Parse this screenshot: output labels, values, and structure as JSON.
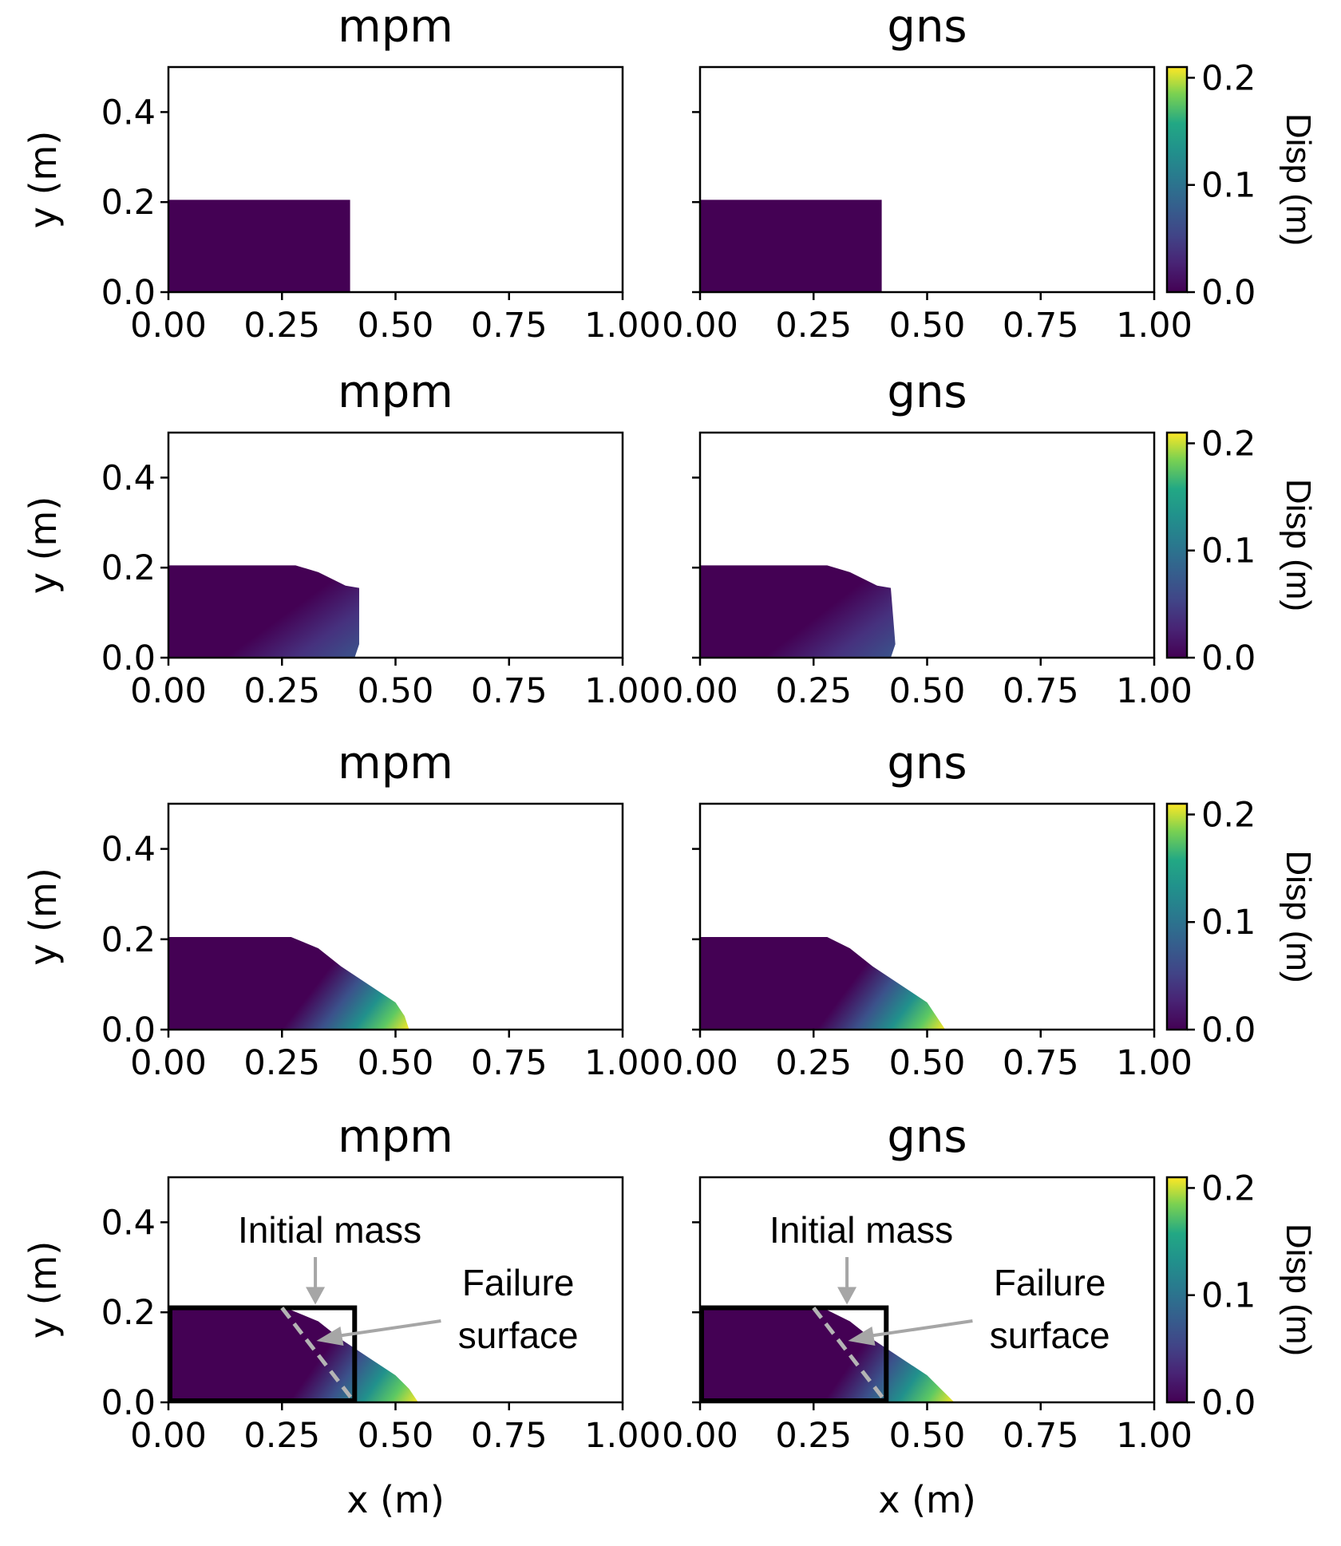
{
  "figure": {
    "colormap": "viridis",
    "axis_color": "#000000",
    "annotation_color": "#a6a6a6",
    "box_color": "#000000"
  },
  "chart_data": [
    {
      "panel": "r1-mpm",
      "type": "scatter",
      "title": "mpm",
      "xlabel": "",
      "ylabel": "y (m)",
      "xlim": [
        0,
        1
      ],
      "ylim": [
        0,
        0.5
      ],
      "xticks": [
        "0.00",
        "0.25",
        "0.50",
        "0.75",
        "1.00"
      ],
      "yticks": [
        "0.0",
        "0.2",
        "0.4"
      ],
      "profile": [
        [
          0,
          0.205
        ],
        [
          0.4,
          0.205
        ],
        [
          0.4,
          0
        ]
      ],
      "disp_front": null,
      "max_disp": 0.0
    },
    {
      "panel": "r1-gns",
      "type": "scatter",
      "title": "gns",
      "xlabel": "",
      "ylabel": "",
      "xlim": [
        0,
        1
      ],
      "ylim": [
        0,
        0.5
      ],
      "xticks": [
        "0.00",
        "0.25",
        "0.50",
        "0.75",
        "1.00"
      ],
      "yticks": [],
      "profile": [
        [
          0,
          0.205
        ],
        [
          0.4,
          0.205
        ],
        [
          0.4,
          0
        ]
      ],
      "disp_front": null,
      "max_disp": 0.0
    },
    {
      "panel": "r2-mpm",
      "type": "scatter",
      "title": "mpm",
      "xlabel": "",
      "ylabel": "y (m)",
      "xlim": [
        0,
        1
      ],
      "ylim": [
        0,
        0.5
      ],
      "xticks": [
        "0.00",
        "0.25",
        "0.50",
        "0.75",
        "1.00"
      ],
      "yticks": [
        "0.0",
        "0.2",
        "0.4"
      ],
      "profile": [
        [
          0,
          0.205
        ],
        [
          0.28,
          0.205
        ],
        [
          0.33,
          0.19
        ],
        [
          0.39,
          0.16
        ],
        [
          0.42,
          0.155
        ],
        [
          0.42,
          0.03
        ],
        [
          0.41,
          0
        ]
      ],
      "disp_front": [
        0.26,
        0.4
      ],
      "max_disp": 0.05
    },
    {
      "panel": "r2-gns",
      "type": "scatter",
      "title": "gns",
      "xlabel": "",
      "ylabel": "",
      "xlim": [
        0,
        1
      ],
      "ylim": [
        0,
        0.5
      ],
      "xticks": [
        "0.00",
        "0.25",
        "0.50",
        "0.75",
        "1.00"
      ],
      "yticks": [],
      "profile": [
        [
          0,
          0.205
        ],
        [
          0.28,
          0.205
        ],
        [
          0.33,
          0.19
        ],
        [
          0.39,
          0.16
        ],
        [
          0.42,
          0.155
        ],
        [
          0.43,
          0.03
        ],
        [
          0.42,
          0
        ]
      ],
      "disp_front": [
        0.26,
        0.4
      ],
      "max_disp": 0.05
    },
    {
      "panel": "r3-mpm",
      "type": "scatter",
      "title": "mpm",
      "xlabel": "",
      "ylabel": "y (m)",
      "xlim": [
        0,
        1
      ],
      "ylim": [
        0,
        0.5
      ],
      "xticks": [
        "0.00",
        "0.25",
        "0.50",
        "0.75",
        "1.00"
      ],
      "yticks": [
        "0.0",
        "0.2",
        "0.4"
      ],
      "profile": [
        [
          0,
          0.205
        ],
        [
          0.27,
          0.205
        ],
        [
          0.33,
          0.18
        ],
        [
          0.38,
          0.14
        ],
        [
          0.44,
          0.1
        ],
        [
          0.5,
          0.06
        ],
        [
          0.52,
          0.03
        ],
        [
          0.53,
          0
        ]
      ],
      "disp_front": [
        0.26,
        0.4
      ],
      "max_disp": 0.2
    },
    {
      "panel": "r3-gns",
      "type": "scatter",
      "title": "gns",
      "xlabel": "",
      "ylabel": "",
      "xlim": [
        0,
        1
      ],
      "ylim": [
        0,
        0.5
      ],
      "xticks": [
        "0.00",
        "0.25",
        "0.50",
        "0.75",
        "1.00"
      ],
      "yticks": [],
      "profile": [
        [
          0,
          0.205
        ],
        [
          0.28,
          0.205
        ],
        [
          0.33,
          0.18
        ],
        [
          0.38,
          0.14
        ],
        [
          0.44,
          0.1
        ],
        [
          0.5,
          0.06
        ],
        [
          0.52,
          0.03
        ],
        [
          0.54,
          0
        ]
      ],
      "disp_front": [
        0.26,
        0.4
      ],
      "max_disp": 0.2
    },
    {
      "panel": "r4-mpm",
      "type": "scatter",
      "title": "mpm",
      "xlabel": "x (m)",
      "ylabel": "y (m)",
      "xlim": [
        0,
        1
      ],
      "ylim": [
        0,
        0.5
      ],
      "xticks": [
        "0.00",
        "0.25",
        "0.50",
        "0.75",
        "1.00"
      ],
      "yticks": [
        "0.0",
        "0.2",
        "0.4"
      ],
      "profile": [
        [
          0,
          0.205
        ],
        [
          0.27,
          0.205
        ],
        [
          0.33,
          0.18
        ],
        [
          0.38,
          0.14
        ],
        [
          0.44,
          0.1
        ],
        [
          0.5,
          0.06
        ],
        [
          0.53,
          0.03
        ],
        [
          0.55,
          0
        ]
      ],
      "disp_front": [
        0.26,
        0.4
      ],
      "max_disp": 0.21,
      "initial_mass": {
        "x0": 0,
        "x1": 0.41,
        "y0": 0,
        "y1": 0.21
      },
      "failure_surface": {
        "x_top": 0.25,
        "y_top": 0.21,
        "x_bottom": 0.41,
        "y_bottom": 0
      },
      "annotations": {
        "initial_mass": "Initial mass",
        "failure_line1": "Failure",
        "failure_line2": "surface"
      }
    },
    {
      "panel": "r4-gns",
      "type": "scatter",
      "title": "gns",
      "xlabel": "x (m)",
      "ylabel": "",
      "xlim": [
        0,
        1
      ],
      "ylim": [
        0,
        0.5
      ],
      "xticks": [
        "0.00",
        "0.25",
        "0.50",
        "0.75",
        "1.00"
      ],
      "yticks": [],
      "profile": [
        [
          0,
          0.205
        ],
        [
          0.28,
          0.205
        ],
        [
          0.33,
          0.18
        ],
        [
          0.38,
          0.14
        ],
        [
          0.44,
          0.1
        ],
        [
          0.5,
          0.06
        ],
        [
          0.53,
          0.03
        ],
        [
          0.56,
          0
        ]
      ],
      "disp_front": [
        0.26,
        0.4
      ],
      "max_disp": 0.21,
      "initial_mass": {
        "x0": 0,
        "x1": 0.41,
        "y0": 0,
        "y1": 0.21
      },
      "failure_surface": {
        "x_top": 0.25,
        "y_top": 0.21,
        "x_bottom": 0.41,
        "y_bottom": 0
      },
      "annotations": {
        "initial_mass": "Initial mass",
        "failure_line1": "Failure",
        "failure_line2": "surface"
      }
    }
  ],
  "colorbar": {
    "label": "Disp (m)",
    "range": [
      0,
      0.21
    ],
    "ticks": [
      "0.0",
      "0.1",
      "0.2"
    ],
    "tick_values": [
      0.0,
      0.1,
      0.2
    ]
  }
}
